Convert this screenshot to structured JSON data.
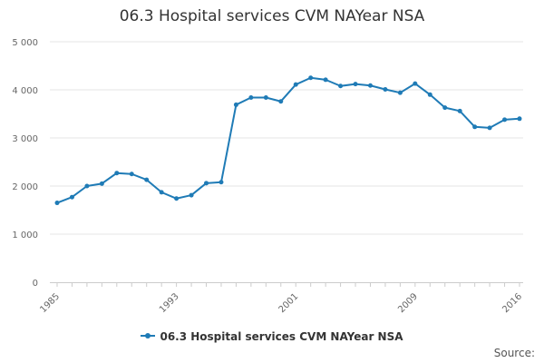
{
  "chart_data": {
    "type": "line",
    "title": "06.3 Hospital services CVM NAYear NSA",
    "xlabel": "",
    "ylabel": "",
    "x": [
      1985,
      1986,
      1987,
      1988,
      1989,
      1990,
      1991,
      1992,
      1993,
      1994,
      1995,
      1996,
      1997,
      1998,
      1999,
      2000,
      2001,
      2002,
      2003,
      2004,
      2005,
      2006,
      2007,
      2008,
      2009,
      2010,
      2011,
      2012,
      2013,
      2014,
      2015,
      2016
    ],
    "series": [
      {
        "name": "06.3 Hospital services CVM NAYear NSA",
        "color": "#1f7bb6",
        "values": [
          1650,
          1770,
          2000,
          2050,
          2270,
          2250,
          2130,
          1870,
          1740,
          1810,
          2060,
          2080,
          3690,
          3840,
          3840,
          3760,
          4110,
          4250,
          4210,
          4080,
          4120,
          4090,
          4010,
          3940,
          4130,
          3900,
          3630,
          3560,
          3230,
          3210,
          3380,
          3400
        ]
      }
    ],
    "ylim": [
      0,
      5000
    ],
    "y_ticks": [
      0,
      1000,
      2000,
      3000,
      4000,
      5000
    ],
    "y_tick_labels": [
      "0",
      "1 000",
      "2 000",
      "3 000",
      "4 000",
      "5 000"
    ],
    "xlim": [
      1985,
      2016
    ],
    "x_ticks": [
      1985,
      1993,
      2001,
      2009,
      2016
    ],
    "x_tick_labels": [
      "1985",
      "1993",
      "2001",
      "2009",
      "2016"
    ],
    "grid": "horizontal",
    "legend_position": "bottom"
  },
  "legend": {
    "label": "06.3 Hospital services CVM NAYear NSA"
  },
  "source": {
    "label": "Source:"
  }
}
